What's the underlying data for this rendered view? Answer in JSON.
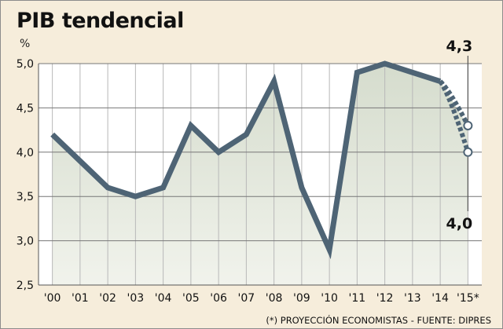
{
  "chart_data": {
    "type": "line",
    "title": "PIB tendencial",
    "unit": "%",
    "source": "(*) PROYECCIÓN ECONOMISTAS - FUENTE: DIPRES",
    "categories": [
      "'00",
      "'01",
      "'02",
      "'03",
      "'04",
      "'05",
      "'06",
      "'07",
      "'08",
      "'09",
      "'10",
      "'11",
      "'12",
      "'13",
      "'14",
      "'15*"
    ],
    "yticks": [
      "2,5",
      "3,0",
      "3,5",
      "4,0",
      "4,5",
      "5,0"
    ],
    "ylim": [
      2.5,
      5.0
    ],
    "grid": true,
    "series": [
      {
        "values": [
          4.2,
          3.9,
          3.6,
          3.5,
          3.6,
          4.3,
          4.0,
          4.2,
          4.8,
          3.6,
          2.9,
          4.9,
          5.0,
          4.9,
          4.8,
          null
        ],
        "color": "#4e6475",
        "style": "solid"
      },
      {
        "values": [
          null,
          null,
          null,
          null,
          null,
          null,
          null,
          null,
          null,
          null,
          null,
          null,
          null,
          null,
          4.8,
          4.3
        ],
        "color": "#4e6475",
        "style": "dotted"
      },
      {
        "values": [
          null,
          null,
          null,
          null,
          null,
          null,
          null,
          null,
          null,
          null,
          null,
          null,
          null,
          null,
          4.8,
          4.0
        ],
        "color": "#4e6475",
        "style": "dotted"
      }
    ],
    "data_labels": [
      "4,3",
      "4,0"
    ]
  }
}
